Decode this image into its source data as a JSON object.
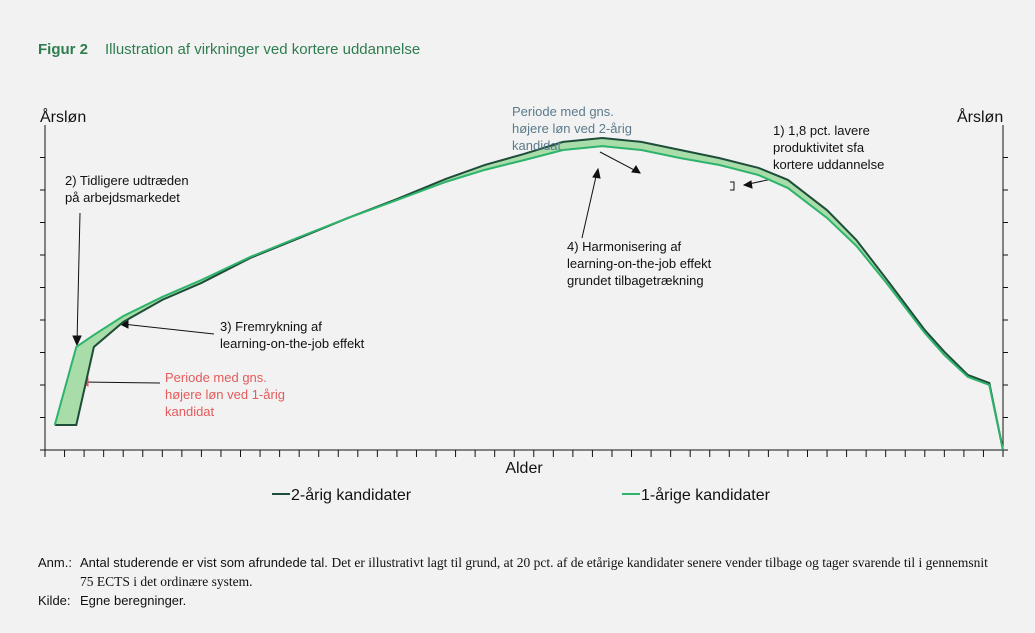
{
  "figure": {
    "label": "Figur 2",
    "title": "Illustration af virkninger ved kortere uddannelse"
  },
  "chart_data": {
    "type": "line",
    "ylabel": "Årsløn",
    "y2label": "Årsløn",
    "xlabel": "Alder",
    "x": [
      0.5,
      1.6,
      2.5,
      4,
      6,
      8,
      10.5,
      13,
      15.5,
      18,
      20.5,
      22.5,
      24.5,
      26.5,
      28.5,
      30.5,
      32.5,
      34.5,
      36.5,
      38,
      40,
      41.5,
      43,
      45,
      46,
      47.2,
      48.3,
      49
    ],
    "series": [
      {
        "name": "2-årig kandidater",
        "color": "#1e4d3a",
        "values": [
          0.77,
          0.77,
          3.17,
          3.94,
          4.62,
          5.14,
          5.91,
          6.52,
          7.14,
          7.72,
          8.34,
          8.77,
          9.11,
          9.48,
          9.6,
          9.48,
          9.23,
          8.98,
          8.68,
          8.31,
          7.38,
          6.46,
          5.29,
          3.69,
          3.02,
          2.31,
          2.06,
          0
        ]
      },
      {
        "name": "1-årige kandidater",
        "color": "#2db36b",
        "values": [
          0.77,
          3.17,
          3.54,
          4.12,
          4.71,
          5.23,
          5.94,
          6.55,
          7.14,
          7.69,
          8.25,
          8.62,
          8.92,
          9.23,
          9.35,
          9.23,
          8.98,
          8.77,
          8.46,
          8.06,
          7.14,
          6.28,
          5.17,
          3.6,
          2.92,
          2.25,
          2.0,
          0
        ]
      }
    ],
    "fill_color": "#a8dca8",
    "xlim": [
      0,
      49
    ],
    "ylim": [
      0,
      10
    ],
    "xticks": [
      0,
      1,
      2,
      3,
      4,
      5,
      6,
      7,
      8,
      9,
      10,
      11,
      12,
      13,
      14,
      15,
      16,
      17,
      18,
      19,
      20,
      21,
      22,
      23,
      24,
      25,
      26,
      27,
      28,
      29,
      30,
      31,
      32,
      33,
      34,
      35,
      36,
      37,
      38,
      39,
      40,
      41,
      42,
      43,
      44,
      45,
      46,
      47,
      48,
      49
    ],
    "yticks": [
      0,
      1,
      2,
      3,
      4,
      5,
      6,
      7,
      8,
      9
    ],
    "annotations": [
      {
        "lines": [
          "Periode med gns.",
          "højere løn ved 2-årig",
          "kandidat"
        ],
        "color": "#5b7b8c"
      },
      {
        "lines": [
          "1) 1,8 pct. lavere",
          "produktivitet sfa",
          "kortere uddannelse"
        ],
        "color": "#111111"
      },
      {
        "lines": [
          "2) Tidligere udtræden",
          "på arbejdsmarkedet"
        ],
        "color": "#111111"
      },
      {
        "lines": [
          "3) Fremrykning af",
          "learning-on-the-job effekt"
        ],
        "color": "#111111"
      },
      {
        "lines": [
          "4) Harmonisering af",
          "learning-on-the-job effekt",
          "grundet tilbagetrækning"
        ],
        "color": "#111111"
      },
      {
        "lines": [
          "Periode med gns.",
          "højere løn ved 1-årig",
          "kandidat"
        ],
        "color": "#e35b5b"
      }
    ]
  },
  "notes": {
    "anm_label": "Anm.:",
    "anm_sans": "Antal studerende er vist som afrundede tal.",
    "anm_serif": "Det er illustrativt lagt til grund, at 20 pct. af de etårige kandidater senere vender tilbage og tager svarende til i gennemsnit 75 ECTS i det ordinære system.",
    "kilde_label": "Kilde:",
    "kilde_text": "Egne beregninger."
  }
}
